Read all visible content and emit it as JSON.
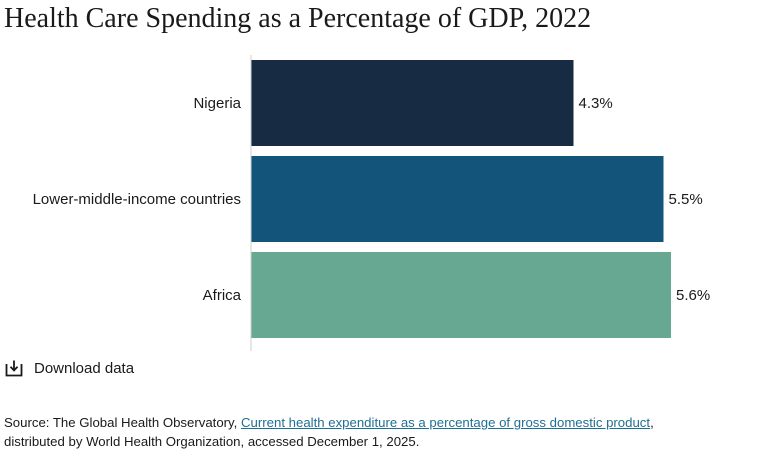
{
  "title": "Health Care Spending as a Percentage of GDP, 2022",
  "download": {
    "label": "Download data",
    "icon": "download-icon"
  },
  "source": {
    "prefix": "Source: The Global Health Observatory, ",
    "link_text": "Current health expenditure as a percentage of gross domestic product",
    "suffix_line1": ",",
    "line2": "distributed by World Health Organization, accessed December 1, 2025."
  },
  "colors": {
    "link": "#1f6f94"
  },
  "chart_data": {
    "type": "bar",
    "orientation": "horizontal",
    "title": "Health Care Spending as a Percentage of GDP, 2022",
    "categories": [
      "Nigeria",
      "Lower-middle-income countries",
      "Africa"
    ],
    "values": [
      4.3,
      5.5,
      5.6
    ],
    "value_labels": [
      "4.3%",
      "5.5%",
      "5.6%"
    ],
    "colors": [
      "#172b43",
      "#13557a",
      "#67a893"
    ],
    "xlim": [
      0,
      6.2
    ],
    "xlabel": "",
    "ylabel": "",
    "grid": false,
    "legend": "none"
  }
}
